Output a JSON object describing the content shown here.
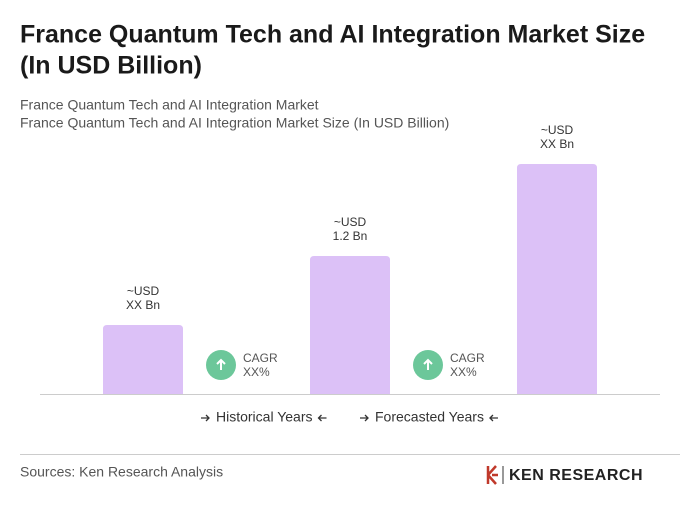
{
  "chart_data": {
    "type": "bar",
    "title": [
      "France Quantum Tech and AI Integration Market Size",
      "(In USD Billion)"
    ],
    "subtitle": [
      "France Quantum Tech and AI Integration Market",
      "France Quantum Tech and AI Integration Market Size (In USD Billion)"
    ],
    "categories": [
      null,
      null,
      null
    ],
    "values": [
      0.6,
      1.2,
      2.0
    ],
    "value_labels": [
      [
        "~USD",
        "XX Bn"
      ],
      [
        "~USD",
        "1.2 Bn"
      ],
      [
        "~USD",
        "XX Bn"
      ]
    ],
    "color": "#dcc1f7",
    "annotations": [
      {
        "label": "CAGR",
        "value": "XX%"
      },
      {
        "label": "CAGR",
        "value": "XX%"
      }
    ],
    "legend": [
      "Historical Years",
      "Forecasted Years"
    ],
    "source": "Sources: Ken Research Analysis",
    "logo": "KEN RESEARCH"
  }
}
